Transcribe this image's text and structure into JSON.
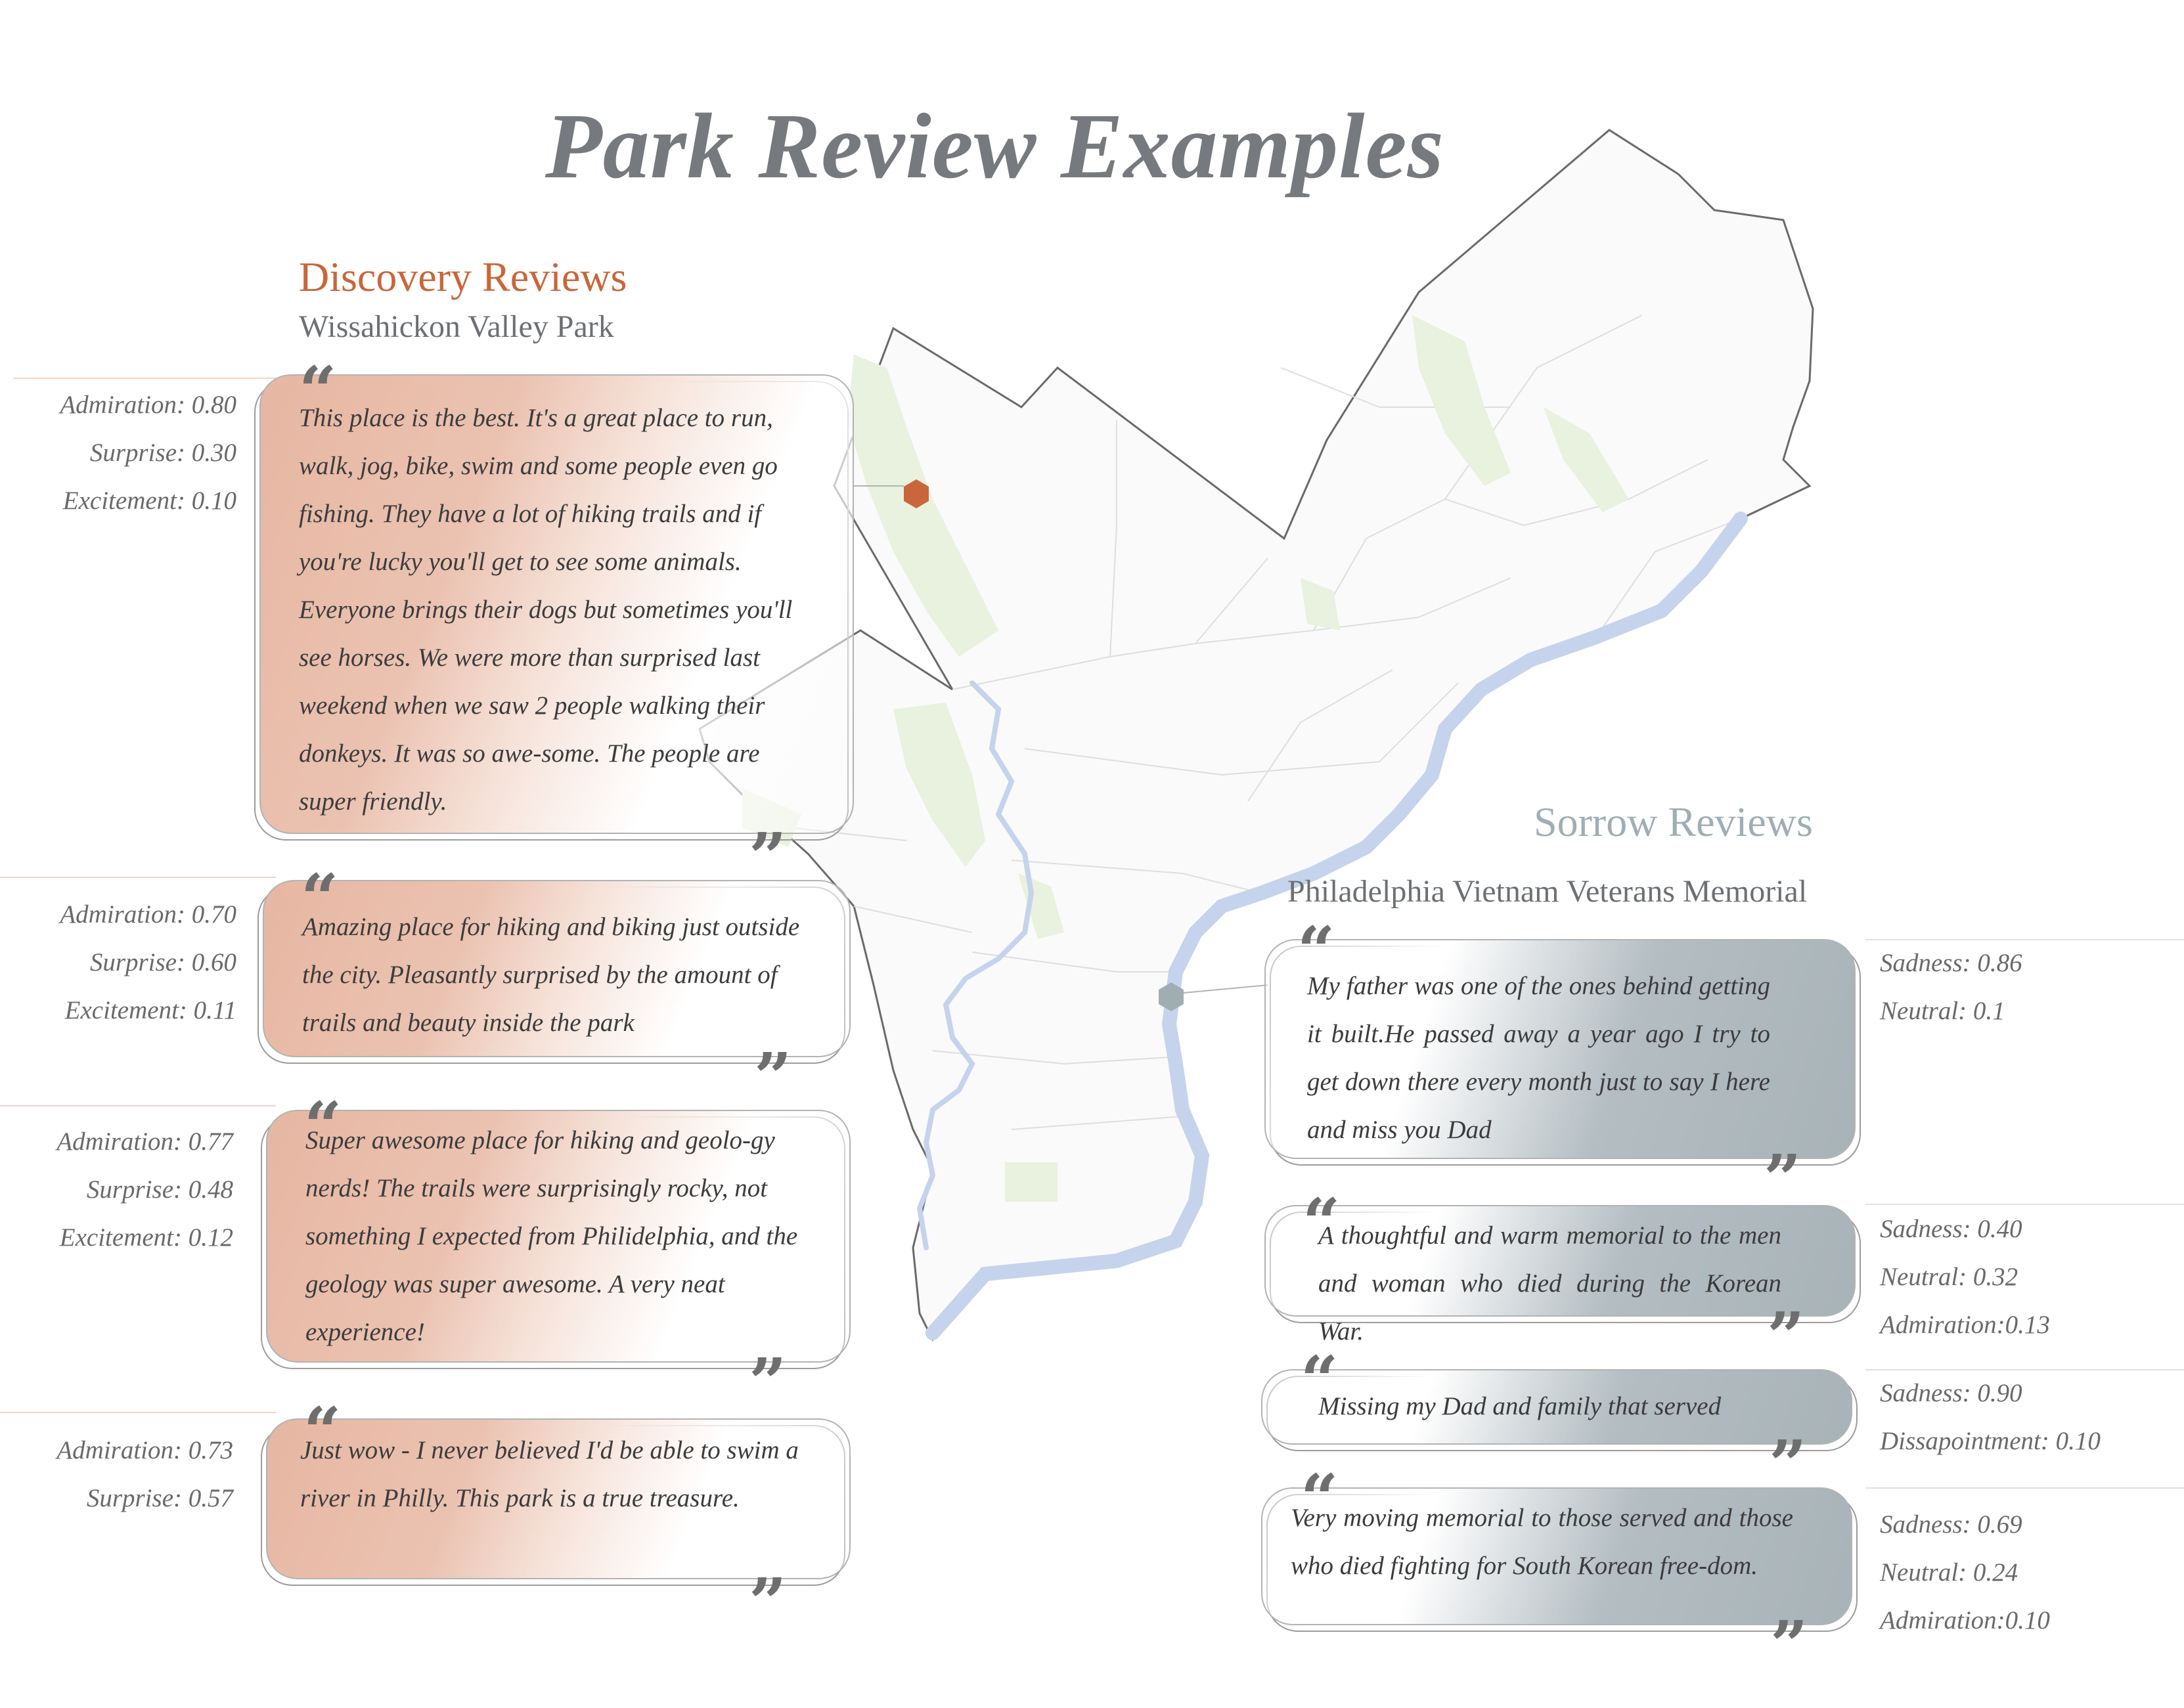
{
  "title": "Park Review Examples",
  "colors": {
    "accent_orange": "#c9663a",
    "accent_gray": "#a0aeb4",
    "title_gray": "#76797d",
    "river": "#c6d3ec",
    "park_green": "#e9f1df"
  },
  "discovery": {
    "title": "Discovery Reviews",
    "park": "Wissahickon Valley Park",
    "reviews": [
      {
        "text": "This place is the best. It's a great place to run, walk, jog, bike, swim and some people even go fishing. They have a lot of hiking trails and if you're lucky you'll get to see some animals. Everyone brings their dogs but sometimes you'll see horses. We were more than surprised last weekend when we saw 2 people walking their donkeys. It was so awe-some. The people are super friendly.",
        "scores": [
          "Admiration: 0.80",
          "Surprise: 0.30",
          "Excitement: 0.10"
        ]
      },
      {
        "text": "Amazing place for hiking and biking just outside the city. Pleasantly surprised by the amount of trails and beauty inside the park",
        "scores": [
          "Admiration: 0.70",
          "Surprise: 0.60",
          "Excitement: 0.11"
        ]
      },
      {
        "text": "Super awesome place for hiking and geolo-gy nerds! The trails were surprisingly rocky, not something I expected from Philidelphia, and the geology was super awesome. A very neat experience!",
        "scores": [
          "Admiration: 0.77",
          "Surprise: 0.48",
          "Excitement: 0.12"
        ]
      },
      {
        "text": "Just wow - I never believed I'd be able to swim a river in Philly.  This park is a true treasure.",
        "scores": [
          "Admiration: 0.73",
          "Surprise: 0.57"
        ]
      }
    ]
  },
  "sorrow": {
    "title": "Sorrow Reviews",
    "park": "Philadelphia Vietnam Veterans Memorial",
    "reviews": [
      {
        "text": "My father was one of the ones behind getting it built.He passed away a year ago I try to get down there every month just to say I here and miss you Dad",
        "scores": [
          "Sadness: 0.86",
          "Neutral: 0.1"
        ]
      },
      {
        "text": "A thoughtful and warm memorial to the men and woman who died during the Korean War.",
        "scores": [
          "Sadness: 0.40",
          "Neutral: 0.32",
          "Admiration:0.13"
        ]
      },
      {
        "text": "Missing my Dad and family that served",
        "scores": [
          "Sadness: 0.90",
          "Dissapointment: 0.10"
        ]
      },
      {
        "text": "Very moving memorial to those served and those who died fighting for South Korean free-dom.",
        "scores": [
          "Sadness: 0.69",
          "Neutral: 0.24",
          "Admiration:0.10"
        ]
      }
    ]
  }
}
